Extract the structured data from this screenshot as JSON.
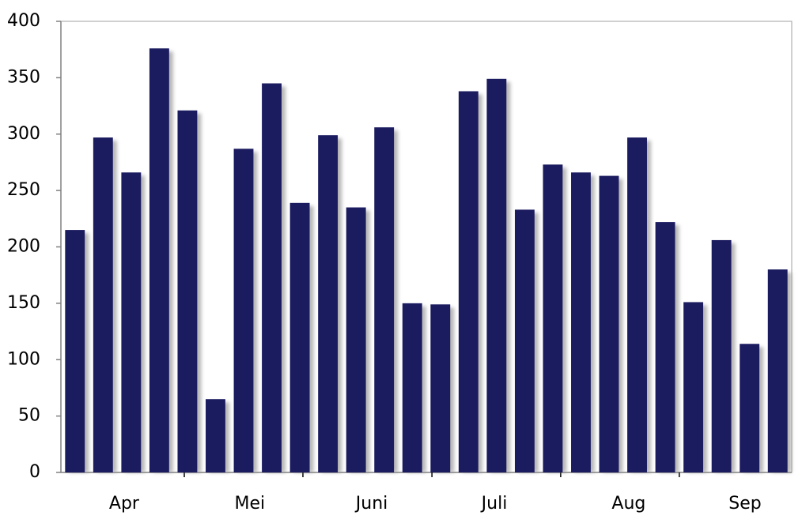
{
  "chart_data": {
    "type": "bar",
    "categories": [
      null,
      null,
      "Apr",
      null,
      null,
      null,
      "Mei",
      null,
      null,
      null,
      null,
      "Juni",
      null,
      null,
      null,
      "Juli",
      null,
      null,
      null,
      null,
      "Aug",
      null,
      null,
      null,
      "Sep",
      null
    ],
    "values": [
      215,
      297,
      266,
      376,
      321,
      65,
      287,
      345,
      239,
      299,
      235,
      306,
      150,
      149,
      338,
      349,
      233,
      273,
      266,
      263,
      297,
      222,
      151,
      206,
      114,
      180
    ],
    "color": "#1b1b60",
    "ylim": [
      0,
      400
    ],
    "yticks": [
      0,
      50,
      100,
      150,
      200,
      250,
      300,
      350,
      400
    ],
    "grid": false
  }
}
